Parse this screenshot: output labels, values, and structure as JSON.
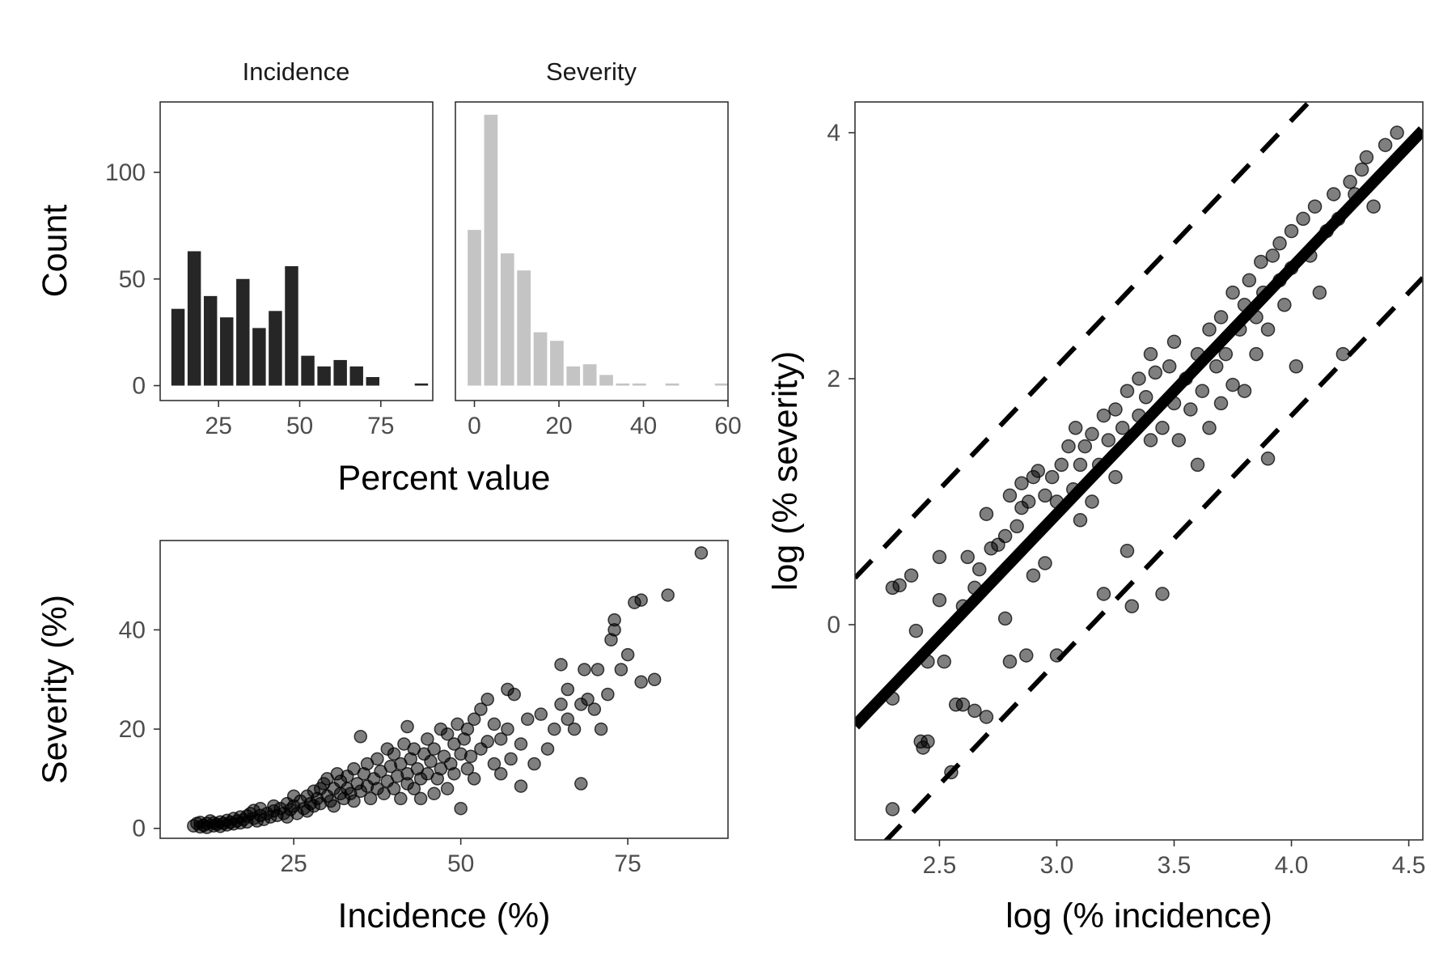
{
  "chart_data": [
    {
      "id": "hist",
      "type": "bar",
      "ylabel": "Count",
      "xlabel": "Percent value",
      "ylim": [
        -7,
        133
      ],
      "y_ticks": [
        0,
        50,
        100
      ],
      "panels": [
        {
          "name": "Incidence",
          "title": "Incidence",
          "color": "#262626",
          "xlim": [
            7,
            91
          ],
          "x_ticks": [
            25,
            50,
            75
          ],
          "bin_width": 5,
          "bin_centers": [
            12.5,
            17.5,
            22.5,
            27.5,
            32.5,
            37.5,
            42.5,
            47.5,
            52.5,
            57.5,
            62.5,
            67.5,
            72.5,
            77.5,
            82.5,
            87.5
          ],
          "values": [
            36,
            63,
            42,
            32,
            50,
            27,
            35,
            56,
            14,
            9,
            12,
            9,
            4,
            0,
            0,
            1
          ]
        },
        {
          "name": "Severity",
          "title": "Severity",
          "color": "#c4c4c4",
          "xlim": [
            -4.5,
            60
          ],
          "x_ticks": [
            0,
            20,
            40,
            60
          ],
          "bin_width": 3.9,
          "bin_centers": [
            0,
            3.9,
            7.8,
            11.7,
            15.6,
            19.5,
            23.4,
            27.3,
            31.2,
            35.1,
            39,
            42.9,
            46.8,
            50.7,
            54.6,
            58.5
          ],
          "values": [
            73,
            127,
            62,
            54,
            25,
            21,
            9,
            10,
            5,
            1,
            1,
            0,
            1,
            0,
            0,
            1
          ]
        }
      ]
    },
    {
      "id": "raw",
      "type": "scatter",
      "xlabel": "Incidence (%)",
      "ylabel": "Severity (%)",
      "xlim": [
        5,
        90
      ],
      "ylim": [
        -2,
        58
      ],
      "x_ticks": [
        25,
        50,
        75
      ],
      "y_ticks": [
        0,
        20,
        40
      ],
      "points": [
        [
          10,
          0.5
        ],
        [
          10.5,
          1
        ],
        [
          11,
          0.3
        ],
        [
          11,
          1.2
        ],
        [
          11.5,
          0.6
        ],
        [
          12,
          1
        ],
        [
          12,
          0.2
        ],
        [
          12.5,
          1.5
        ],
        [
          13,
          0.5
        ],
        [
          13,
          1.1
        ],
        [
          13.5,
          0.8
        ],
        [
          14,
          1.3
        ],
        [
          14,
          0.4
        ],
        [
          14.5,
          1
        ],
        [
          15,
          1.6
        ],
        [
          15,
          0.7
        ],
        [
          15.5,
          1.2
        ],
        [
          16,
          2
        ],
        [
          16,
          0.9
        ],
        [
          16.5,
          1.5
        ],
        [
          17,
          2.3
        ],
        [
          17,
          1.1
        ],
        [
          17.5,
          1.8
        ],
        [
          18,
          2.5
        ],
        [
          18,
          1.3
        ],
        [
          18.5,
          3
        ],
        [
          19,
          2
        ],
        [
          19,
          3.6
        ],
        [
          19.5,
          1.5
        ],
        [
          20,
          2.6
        ],
        [
          20,
          4
        ],
        [
          20.5,
          1.8
        ],
        [
          21,
          3
        ],
        [
          21.5,
          2.3
        ],
        [
          22,
          3.5
        ],
        [
          22,
          4.5
        ],
        [
          22.5,
          2.6
        ],
        [
          23,
          4
        ],
        [
          23.5,
          3
        ],
        [
          24,
          5
        ],
        [
          24,
          2.3
        ],
        [
          24.5,
          3.8
        ],
        [
          25,
          4.5
        ],
        [
          25,
          6.5
        ],
        [
          25.5,
          3
        ],
        [
          26,
          5.5
        ],
        [
          26.5,
          4
        ],
        [
          27,
          6.5
        ],
        [
          27,
          3.5
        ],
        [
          27.5,
          5
        ],
        [
          28,
          7.5
        ],
        [
          28,
          4.5
        ],
        [
          28.5,
          6
        ],
        [
          29,
          8
        ],
        [
          29,
          5
        ],
        [
          29.5,
          9
        ],
        [
          30,
          6.5
        ],
        [
          30,
          10
        ],
        [
          30.5,
          5.5
        ],
        [
          31,
          8
        ],
        [
          31,
          4.5
        ],
        [
          31.5,
          11
        ],
        [
          32,
          7
        ],
        [
          32,
          9.5
        ],
        [
          32.5,
          6
        ],
        [
          33,
          10.5
        ],
        [
          33,
          8
        ],
        [
          33.5,
          7
        ],
        [
          34,
          12
        ],
        [
          34,
          5.5
        ],
        [
          34.5,
          9
        ],
        [
          35,
          18.5
        ],
        [
          35,
          7.5
        ],
        [
          35.5,
          11
        ],
        [
          36,
          8.5
        ],
        [
          36,
          13
        ],
        [
          36.5,
          6
        ],
        [
          37,
          10
        ],
        [
          37.5,
          14
        ],
        [
          37.5,
          8
        ],
        [
          38,
          11.5
        ],
        [
          38.5,
          7
        ],
        [
          39,
          16
        ],
        [
          39,
          9.5
        ],
        [
          39.5,
          12.5
        ],
        [
          40,
          8
        ],
        [
          40,
          15
        ],
        [
          40.5,
          10.5
        ],
        [
          41,
          6
        ],
        [
          41,
          13
        ],
        [
          41.5,
          17
        ],
        [
          42,
          9
        ],
        [
          42,
          11
        ],
        [
          42,
          20.5
        ],
        [
          42.5,
          14
        ],
        [
          43,
          8
        ],
        [
          43,
          16
        ],
        [
          43.5,
          12
        ],
        [
          44,
          6
        ],
        [
          44,
          10
        ],
        [
          44.5,
          15
        ],
        [
          45,
          11
        ],
        [
          45,
          18
        ],
        [
          45.5,
          13.5
        ],
        [
          46,
          7
        ],
        [
          46,
          16
        ],
        [
          46.5,
          10
        ],
        [
          47,
          20
        ],
        [
          47,
          12
        ],
        [
          47.5,
          14.5
        ],
        [
          48,
          19
        ],
        [
          48,
          8
        ],
        [
          48.5,
          13
        ],
        [
          49,
          17
        ],
        [
          49,
          11
        ],
        [
          49.5,
          21
        ],
        [
          50,
          4
        ],
        [
          50,
          15
        ],
        [
          50.5,
          18
        ],
        [
          51,
          12
        ],
        [
          51,
          20
        ],
        [
          51.5,
          14.5
        ],
        [
          52,
          22
        ],
        [
          52,
          10
        ],
        [
          53,
          24
        ],
        [
          53,
          16
        ],
        [
          54,
          17.5
        ],
        [
          54,
          26
        ],
        [
          55,
          13
        ],
        [
          55,
          21
        ],
        [
          56,
          11
        ],
        [
          56,
          18
        ],
        [
          57,
          20
        ],
        [
          57,
          28
        ],
        [
          57.5,
          14
        ],
        [
          58,
          27
        ],
        [
          59,
          8.5
        ],
        [
          59,
          17
        ],
        [
          60,
          22
        ],
        [
          61,
          13
        ],
        [
          62,
          23
        ],
        [
          63,
          16
        ],
        [
          64,
          20
        ],
        [
          65,
          25
        ],
        [
          65,
          33
        ],
        [
          66,
          22
        ],
        [
          66,
          28
        ],
        [
          67,
          20
        ],
        [
          68,
          9
        ],
        [
          68,
          25
        ],
        [
          68.5,
          32
        ],
        [
          69,
          26
        ],
        [
          70,
          24
        ],
        [
          70.5,
          32
        ],
        [
          71,
          20
        ],
        [
          72,
          27
        ],
        [
          72.5,
          38
        ],
        [
          73,
          42
        ],
        [
          73,
          40
        ],
        [
          74,
          32
        ],
        [
          75,
          35
        ],
        [
          76,
          45.5
        ],
        [
          77,
          46
        ],
        [
          77,
          29.5
        ],
        [
          79,
          30
        ],
        [
          81,
          47
        ],
        [
          86,
          55.5
        ]
      ]
    },
    {
      "id": "log",
      "type": "scatter",
      "xlabel": "log (% incidence)",
      "ylabel": "log (% severity)",
      "xlim": [
        2.14,
        4.56
      ],
      "ylim": [
        -1.75,
        4.25
      ],
      "x_ticks": [
        2.5,
        3.0,
        3.5,
        4.0,
        4.5
      ],
      "y_ticks": [
        0,
        2,
        4
      ],
      "x_tick_labels": [
        "2.5",
        "3.0",
        "3.5",
        "4.0",
        "4.5"
      ],
      "y_tick_labels": [
        "0",
        "2",
        "4"
      ],
      "fit_line": {
        "slope": 2.0,
        "intercept": -5.1
      },
      "band_offset": 1.2,
      "points": [
        [
          2.3,
          -1.5
        ],
        [
          2.3,
          0.3
        ],
        [
          2.3,
          -0.6
        ],
        [
          2.33,
          0.32
        ],
        [
          2.38,
          0.4
        ],
        [
          2.4,
          -0.05
        ],
        [
          2.42,
          -0.95
        ],
        [
          2.43,
          -1.0
        ],
        [
          2.45,
          -0.95
        ],
        [
          2.45,
          -0.3
        ],
        [
          2.5,
          0.55
        ],
        [
          2.5,
          0.2
        ],
        [
          2.52,
          -0.3
        ],
        [
          2.55,
          -1.2
        ],
        [
          2.57,
          -0.65
        ],
        [
          2.6,
          -0.65
        ],
        [
          2.6,
          0.15
        ],
        [
          2.62,
          0.55
        ],
        [
          2.65,
          -0.7
        ],
        [
          2.65,
          0.3
        ],
        [
          2.67,
          0.45
        ],
        [
          2.7,
          0.9
        ],
        [
          2.7,
          -0.75
        ],
        [
          2.72,
          0.62
        ],
        [
          2.75,
          0.65
        ],
        [
          2.78,
          0.72
        ],
        [
          2.78,
          0.05
        ],
        [
          2.8,
          1.05
        ],
        [
          2.8,
          -0.3
        ],
        [
          2.83,
          0.8
        ],
        [
          2.85,
          1.15
        ],
        [
          2.85,
          0.95
        ],
        [
          2.87,
          -0.25
        ],
        [
          2.88,
          1.0
        ],
        [
          2.9,
          1.2
        ],
        [
          2.9,
          0.4
        ],
        [
          2.92,
          1.25
        ],
        [
          2.95,
          1.05
        ],
        [
          2.95,
          0.5
        ],
        [
          2.98,
          1.2
        ],
        [
          3.0,
          1.0
        ],
        [
          3.0,
          -0.25
        ],
        [
          3.02,
          1.3
        ],
        [
          3.05,
          1.45
        ],
        [
          3.07,
          1.1
        ],
        [
          3.08,
          1.6
        ],
        [
          3.1,
          1.3
        ],
        [
          3.1,
          0.85
        ],
        [
          3.12,
          1.45
        ],
        [
          3.15,
          1.55
        ],
        [
          3.15,
          1.0
        ],
        [
          3.18,
          1.3
        ],
        [
          3.2,
          1.7
        ],
        [
          3.2,
          0.25
        ],
        [
          3.22,
          1.5
        ],
        [
          3.25,
          1.75
        ],
        [
          3.25,
          1.2
        ],
        [
          3.28,
          1.6
        ],
        [
          3.3,
          1.9
        ],
        [
          3.3,
          0.6
        ],
        [
          3.32,
          0.15
        ],
        [
          3.35,
          1.7
        ],
        [
          3.35,
          2.0
        ],
        [
          3.38,
          1.85
        ],
        [
          3.4,
          2.2
        ],
        [
          3.4,
          1.5
        ],
        [
          3.42,
          2.05
        ],
        [
          3.45,
          1.6
        ],
        [
          3.45,
          0.25
        ],
        [
          3.48,
          2.1
        ],
        [
          3.5,
          1.8
        ],
        [
          3.5,
          2.3
        ],
        [
          3.52,
          1.5
        ],
        [
          3.55,
          2.0
        ],
        [
          3.57,
          1.75
        ],
        [
          3.6,
          2.2
        ],
        [
          3.6,
          1.3
        ],
        [
          3.62,
          1.9
        ],
        [
          3.65,
          2.4
        ],
        [
          3.65,
          1.6
        ],
        [
          3.68,
          2.1
        ],
        [
          3.7,
          2.5
        ],
        [
          3.7,
          1.8
        ],
        [
          3.72,
          2.2
        ],
        [
          3.75,
          2.7
        ],
        [
          3.75,
          1.95
        ],
        [
          3.78,
          2.4
        ],
        [
          3.8,
          2.6
        ],
        [
          3.8,
          1.9
        ],
        [
          3.82,
          2.8
        ],
        [
          3.85,
          2.5
        ],
        [
          3.85,
          2.2
        ],
        [
          3.87,
          2.95
        ],
        [
          3.88,
          2.7
        ],
        [
          3.9,
          1.35
        ],
        [
          3.9,
          2.4
        ],
        [
          3.92,
          3.0
        ],
        [
          3.95,
          2.8
        ],
        [
          3.95,
          3.1
        ],
        [
          3.97,
          2.6
        ],
        [
          4.0,
          3.2
        ],
        [
          4.0,
          2.9
        ],
        [
          4.02,
          2.1
        ],
        [
          4.05,
          3.3
        ],
        [
          4.08,
          3.0
        ],
        [
          4.1,
          3.4
        ],
        [
          4.12,
          2.7
        ],
        [
          4.15,
          3.2
        ],
        [
          4.18,
          3.5
        ],
        [
          4.2,
          3.3
        ],
        [
          4.22,
          2.2
        ],
        [
          4.25,
          3.6
        ],
        [
          4.27,
          3.5
        ],
        [
          4.3,
          3.7
        ],
        [
          4.32,
          3.8
        ],
        [
          4.35,
          3.4
        ],
        [
          4.4,
          3.9
        ],
        [
          4.45,
          4.0
        ]
      ]
    }
  ]
}
